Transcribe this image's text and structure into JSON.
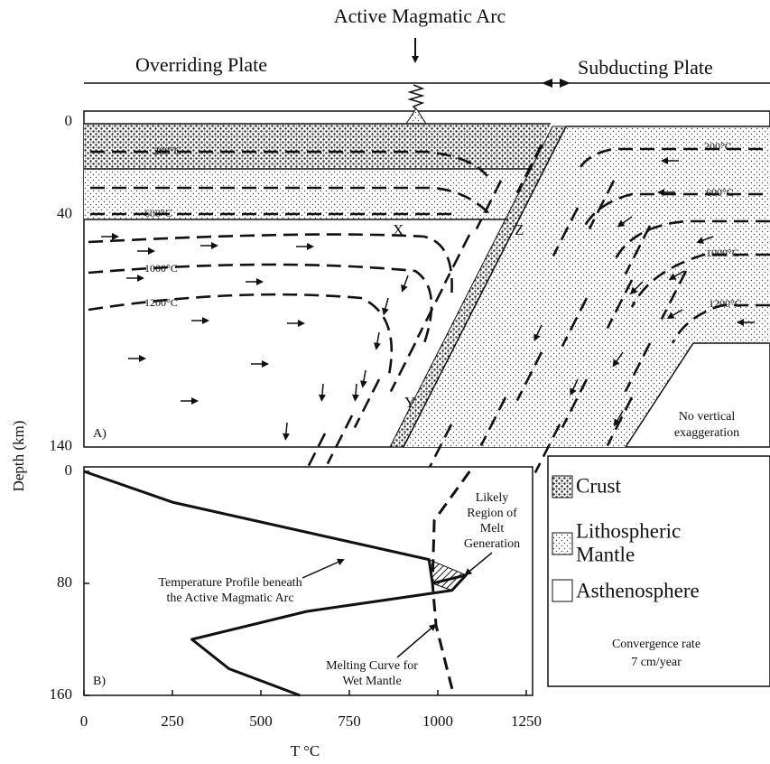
{
  "title": "Active Magmatic Arc",
  "plates": {
    "overriding": "Overriding Plate",
    "subducting": "Subducting Plate"
  },
  "depth_label": "Depth (km)",
  "panel_a": {
    "label": "A)",
    "depth_ticks": [
      0,
      40,
      140
    ],
    "isotherms_left": [
      "200°C",
      "600°C",
      "1000°C",
      "1200°C"
    ],
    "isotherms_right": [
      "200°C",
      "600°C",
      "1000°C",
      "1200°C"
    ],
    "points": [
      "X",
      "Y",
      "Z"
    ],
    "note": [
      "No vertical",
      "exaggeration"
    ]
  },
  "legend": {
    "items": [
      [
        "Crust"
      ],
      [
        "Lithospheric",
        "Mantle"
      ],
      [
        "Asthenosphere"
      ]
    ],
    "convergence": [
      "Convergence rate",
      "7 cm/year"
    ]
  },
  "chart_data": {
    "type": "line",
    "label": "B)",
    "x_label": "T °C",
    "xlim": [
      0,
      1250
    ],
    "xticks": [
      0,
      250,
      500,
      750,
      1000,
      1250
    ],
    "ylim": [
      160,
      0
    ],
    "yticks": [
      0,
      80,
      160
    ],
    "series": [
      {
        "color": "#111111",
        "dashed": false,
        "x": [
          0,
          250,
          975,
          985,
          1080,
          1040,
          630,
          305,
          410,
          610
        ],
        "values": [
          0,
          22,
          63,
          80,
          74,
          85,
          100,
          120,
          141,
          160
        ]
      },
      {
        "color": "#111111",
        "dashed": true,
        "x": [
          1090,
          990,
          985,
          995,
          1045
        ],
        "values": [
          0,
          35,
          80,
          110,
          160
        ]
      }
    ],
    "annotations": [
      [
        "Likely",
        "Region of",
        "Melt",
        "Generation"
      ],
      [
        "Temperature Profile beneath",
        "the Active Magmatic Arc"
      ],
      [
        "Melting Curve for",
        "Wet Mantle"
      ]
    ]
  }
}
